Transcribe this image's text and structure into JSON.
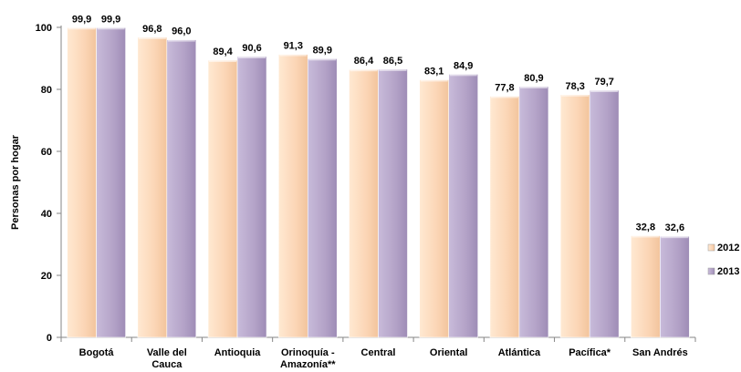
{
  "chart_data": {
    "type": "bar",
    "ylabel": "Personas por hogar",
    "xlabel": "",
    "ylim": [
      0,
      100
    ],
    "yticks": [
      0,
      20,
      40,
      60,
      80,
      100
    ],
    "grid": false,
    "legend": "right",
    "categories": [
      [
        "Bogotá"
      ],
      [
        "Valle del",
        "Cauca"
      ],
      [
        "Antioquia"
      ],
      [
        "Orinoquía -",
        "Amazonía**"
      ],
      [
        "Central"
      ],
      [
        "Oriental"
      ],
      [
        "Atlántica"
      ],
      [
        "Pacífica*"
      ],
      [
        "San Andrés"
      ]
    ],
    "series": [
      {
        "name": "2012",
        "color": "#FBD5B5",
        "values": [
          99.9,
          96.8,
          89.4,
          91.3,
          86.4,
          83.1,
          77.8,
          78.3,
          32.8
        ],
        "labels": [
          "99,9",
          "96,8",
          "89,4",
          "91,3",
          "86,4",
          "83,1",
          "77,8",
          "78,3",
          "32,8"
        ]
      },
      {
        "name": "2013",
        "color": "#B3A2C7",
        "values": [
          99.9,
          96.0,
          90.6,
          89.9,
          86.5,
          84.9,
          80.9,
          79.7,
          32.6
        ],
        "labels": [
          "99,9",
          "96,0",
          "90,6",
          "89,9",
          "86,5",
          "84,9",
          "80,9",
          "79,7",
          "32,6"
        ]
      }
    ]
  }
}
